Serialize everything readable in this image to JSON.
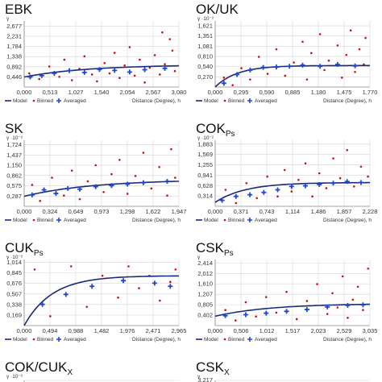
{
  "colors": {
    "model": "#1c2a7a",
    "binned": "#cc1111",
    "averaged": "#1f47d6",
    "grid": "#d6d6d6",
    "axis": "#888888"
  },
  "legend": {
    "model": "Model",
    "binned": "Binned",
    "averaged": "Averaged"
  },
  "chart_data": [
    {
      "type": "scatter",
      "title": "EBK",
      "title_sub": "",
      "xlabel": "Distance (Degree), h",
      "ylabel": "γ",
      "y_mult": "",
      "x_ticks": [
        "0,000",
        "0,513",
        "1,027",
        "1,540",
        "2,054",
        "2,567",
        "3,080"
      ],
      "y_ticks": [
        "0,446",
        "0,892",
        "1,338",
        "1,784",
        "2,231",
        "2,677"
      ],
      "xlim": [
        0,
        3.08
      ],
      "ylim": [
        0,
        2.9
      ],
      "model": {
        "nugget": 0.44,
        "sill": 0.98,
        "range": 3.8
      },
      "averaged": [
        [
          0.12,
          0.44
        ],
        [
          0.35,
          0.5
        ],
        [
          0.6,
          0.6
        ],
        [
          0.9,
          0.72
        ],
        [
          1.2,
          0.64
        ],
        [
          1.5,
          0.77
        ],
        [
          1.8,
          0.73
        ],
        [
          2.1,
          0.66
        ],
        [
          2.4,
          0.76
        ],
        [
          2.8,
          0.82
        ]
      ],
      "binned": [
        [
          0.1,
          0.6
        ],
        [
          0.3,
          0.35
        ],
        [
          0.5,
          0.9
        ],
        [
          0.7,
          0.45
        ],
        [
          0.8,
          1.2
        ],
        [
          0.95,
          0.3
        ],
        [
          1.1,
          0.8
        ],
        [
          1.2,
          1.35
        ],
        [
          1.35,
          0.55
        ],
        [
          1.45,
          0.25
        ],
        [
          1.6,
          1.05
        ],
        [
          1.7,
          0.6
        ],
        [
          1.8,
          1.5
        ],
        [
          1.9,
          0.4
        ],
        [
          2.0,
          0.95
        ],
        [
          2.1,
          1.75
        ],
        [
          2.2,
          0.5
        ],
        [
          2.3,
          1.2
        ],
        [
          2.4,
          0.2
        ],
        [
          2.5,
          0.85
        ],
        [
          2.6,
          1.4
        ],
        [
          2.7,
          0.55
        ],
        [
          2.8,
          1.0
        ],
        [
          2.9,
          2.1
        ],
        [
          3.0,
          0.7
        ],
        [
          2.95,
          1.6
        ],
        [
          2.75,
          2.4
        ]
      ]
    },
    {
      "type": "scatter",
      "title": "OK/UK",
      "title_sub": "",
      "xlabel": "Distance (Degree), h",
      "ylabel": "γ",
      "y_mult": "·10⁻²",
      "x_ticks": [
        "0,000",
        "0,295",
        "0,590",
        "0,885",
        "1,180",
        "1,475",
        "1,770"
      ],
      "y_ticks": [
        "0,270",
        "0,540",
        "0,810",
        "1,081",
        "1,351",
        "1,621"
      ],
      "xlim": [
        0,
        1.77
      ],
      "ylim": [
        0,
        1.75
      ],
      "model": {
        "nugget": 0.0,
        "sill": 0.57,
        "range": 0.75
      },
      "averaged": [
        [
          0.1,
          0.1
        ],
        [
          0.25,
          0.33
        ],
        [
          0.4,
          0.45
        ],
        [
          0.55,
          0.52
        ],
        [
          0.7,
          0.53
        ],
        [
          0.85,
          0.55
        ],
        [
          1.0,
          0.58
        ],
        [
          1.2,
          0.55
        ],
        [
          1.4,
          0.6
        ],
        [
          1.6,
          0.56
        ]
      ],
      "binned": [
        [
          0.1,
          0.25
        ],
        [
          0.2,
          0.05
        ],
        [
          0.3,
          0.5
        ],
        [
          0.4,
          0.2
        ],
        [
          0.5,
          0.8
        ],
        [
          0.6,
          0.35
        ],
        [
          0.7,
          1.0
        ],
        [
          0.8,
          0.3
        ],
        [
          0.9,
          0.65
        ],
        [
          1.0,
          1.2
        ],
        [
          1.05,
          0.2
        ],
        [
          1.1,
          0.9
        ],
        [
          1.2,
          1.4
        ],
        [
          1.25,
          0.45
        ],
        [
          1.3,
          0.7
        ],
        [
          1.4,
          1.1
        ],
        [
          1.45,
          0.25
        ],
        [
          1.5,
          0.85
        ],
        [
          1.55,
          1.5
        ],
        [
          1.6,
          0.4
        ],
        [
          1.65,
          1.0
        ],
        [
          1.7,
          0.6
        ],
        [
          1.72,
          1.3
        ]
      ]
    },
    {
      "type": "scatter",
      "title": "SK",
      "title_sub": "",
      "xlabel": "Distance (Degree), h",
      "ylabel": "γ",
      "y_mult": "·10⁻²",
      "x_ticks": [
        "0,000",
        "0,324",
        "0,649",
        "0,973",
        "1,298",
        "1,622",
        "1,947"
      ],
      "y_ticks": [
        "0,287",
        "0,575",
        "0,862",
        "1,150",
        "1,437",
        "1,724"
      ],
      "xlim": [
        0,
        1.947
      ],
      "ylim": [
        0,
        1.85
      ],
      "model": {
        "nugget": 0.28,
        "sill": 0.75,
        "range": 2.6
      },
      "averaged": [
        [
          0.1,
          0.32
        ],
        [
          0.25,
          0.46
        ],
        [
          0.4,
          0.36
        ],
        [
          0.55,
          0.5
        ],
        [
          0.7,
          0.48
        ],
        [
          0.9,
          0.55
        ],
        [
          1.1,
          0.58
        ],
        [
          1.3,
          0.62
        ],
        [
          1.5,
          0.66
        ],
        [
          1.8,
          0.7
        ]
      ],
      "binned": [
        [
          0.1,
          0.6
        ],
        [
          0.2,
          0.15
        ],
        [
          0.35,
          0.8
        ],
        [
          0.5,
          0.3
        ],
        [
          0.6,
          1.0
        ],
        [
          0.7,
          0.2
        ],
        [
          0.8,
          0.7
        ],
        [
          0.9,
          1.15
        ],
        [
          1.0,
          0.4
        ],
        [
          1.1,
          0.9
        ],
        [
          1.2,
          1.3
        ],
        [
          1.3,
          0.35
        ],
        [
          1.4,
          0.85
        ],
        [
          1.5,
          1.5
        ],
        [
          1.6,
          0.5
        ],
        [
          1.7,
          1.1
        ],
        [
          1.8,
          0.3
        ],
        [
          1.85,
          1.6
        ],
        [
          1.9,
          0.8
        ]
      ]
    },
    {
      "type": "scatter",
      "title": "COK",
      "title_sub": "Ps",
      "xlabel": "Distance (Degree), h",
      "ylabel": "γ",
      "y_mult": "·10⁻²",
      "x_ticks": [
        "0,000",
        "0,371",
        "0,743",
        "1,114",
        "1,486",
        "1,857",
        "2,228"
      ],
      "y_ticks": [
        "0,314",
        "0,628",
        "0,941",
        "1,255",
        "1,569",
        "1,883"
      ],
      "xlim": [
        0,
        2.228
      ],
      "ylim": [
        0,
        2.0
      ],
      "model": {
        "nugget": 0.12,
        "sill": 0.72,
        "range": 1.3
      },
      "averaged": [
        [
          0.1,
          0.18
        ],
        [
          0.3,
          0.3
        ],
        [
          0.5,
          0.35
        ],
        [
          0.7,
          0.42
        ],
        [
          0.9,
          0.5
        ],
        [
          1.1,
          0.6
        ],
        [
          1.3,
          0.62
        ],
        [
          1.5,
          0.66
        ],
        [
          1.7,
          0.7
        ],
        [
          1.9,
          0.75
        ],
        [
          2.1,
          0.72
        ]
      ],
      "binned": [
        [
          0.15,
          0.5
        ],
        [
          0.3,
          0.1
        ],
        [
          0.45,
          0.7
        ],
        [
          0.6,
          0.25
        ],
        [
          0.75,
          0.9
        ],
        [
          0.9,
          0.3
        ],
        [
          1.0,
          1.1
        ],
        [
          1.1,
          0.45
        ],
        [
          1.2,
          0.8
        ],
        [
          1.3,
          1.3
        ],
        [
          1.4,
          0.3
        ],
        [
          1.5,
          1.0
        ],
        [
          1.6,
          0.55
        ],
        [
          1.7,
          1.45
        ],
        [
          1.8,
          0.85
        ],
        [
          1.9,
          1.7
        ],
        [
          2.0,
          0.6
        ],
        [
          2.1,
          1.2
        ],
        [
          2.2,
          0.9
        ]
      ]
    },
    {
      "type": "scatter",
      "title": "CUK",
      "title_sub": "Ps",
      "xlabel": "Distance (Degree), h",
      "ylabel": "γ",
      "y_mult": "·10⁻²",
      "x_ticks": [
        "0,000",
        "0,494",
        "0,988",
        "1,482",
        "1,976",
        "2,471",
        "2,965"
      ],
      "y_ticks": [
        "0,169",
        "0,338",
        "0,507",
        "0,676",
        "0,845",
        "1,014"
      ],
      "xlim": [
        0,
        2.965
      ],
      "ylim": [
        0,
        1.06
      ],
      "model": {
        "nugget": 0.0,
        "sill": 0.8,
        "range": 1.6
      },
      "averaged": [
        [
          0.35,
          0.34
        ],
        [
          0.8,
          0.5
        ],
        [
          1.3,
          0.63
        ],
        [
          1.9,
          0.72
        ],
        [
          2.5,
          0.68
        ],
        [
          2.8,
          0.63
        ]
      ],
      "binned": [
        [
          0.2,
          0.9
        ],
        [
          0.5,
          0.15
        ],
        [
          0.9,
          0.95
        ],
        [
          1.2,
          0.3
        ],
        [
          1.5,
          0.8
        ],
        [
          1.8,
          0.45
        ],
        [
          2.0,
          0.95
        ],
        [
          2.2,
          0.6
        ],
        [
          2.4,
          0.8
        ],
        [
          2.6,
          0.4
        ],
        [
          2.8,
          0.7
        ],
        [
          2.9,
          0.9
        ]
      ]
    },
    {
      "type": "scatter",
      "title": "CSK",
      "title_sub": "Ps",
      "xlabel": "Distance (Degree), h",
      "ylabel": "γ",
      "y_mult": "",
      "x_ticks": [
        "0,000",
        "0,506",
        "1,012",
        "1,517",
        "2,023",
        "2,529",
        "3,035"
      ],
      "y_ticks": [
        "0,402",
        "0,805",
        "1,207",
        "1,610",
        "2,012",
        "2,414"
      ],
      "xlim": [
        0,
        3.035
      ],
      "ylim": [
        0,
        2.55
      ],
      "model": {
        "nugget": 0.36,
        "sill": 0.85,
        "range": 3.2
      },
      "averaged": [
        [
          0.2,
          0.38
        ],
        [
          0.6,
          0.42
        ],
        [
          1.0,
          0.48
        ],
        [
          1.4,
          0.55
        ],
        [
          1.8,
          0.62
        ],
        [
          2.2,
          0.72
        ],
        [
          2.6,
          0.78
        ],
        [
          2.9,
          0.8
        ]
      ],
      "binned": [
        [
          0.2,
          0.6
        ],
        [
          0.4,
          0.2
        ],
        [
          0.6,
          0.9
        ],
        [
          0.8,
          0.35
        ],
        [
          1.0,
          1.1
        ],
        [
          1.2,
          0.5
        ],
        [
          1.4,
          1.3
        ],
        [
          1.6,
          0.25
        ],
        [
          1.8,
          0.95
        ],
        [
          2.0,
          1.6
        ],
        [
          2.2,
          0.45
        ],
        [
          2.3,
          1.25
        ],
        [
          2.4,
          0.7
        ],
        [
          2.5,
          1.9
        ],
        [
          2.6,
          0.3
        ],
        [
          2.7,
          1.0
        ],
        [
          2.8,
          1.5
        ],
        [
          2.9,
          0.6
        ],
        [
          3.0,
          2.2
        ]
      ]
    },
    {
      "type": "scatter",
      "title": "COK/CUK",
      "title_sub": "X",
      "xlabel": "",
      "ylabel": "γ",
      "y_mult": "·10⁻²",
      "x_ticks": [],
      "y_ticks": [],
      "top_tick": "",
      "partial": true
    },
    {
      "type": "scatter",
      "title": "CSK",
      "title_sub": "X",
      "xlabel": "",
      "ylabel": "γ",
      "y_mult": "",
      "x_ticks": [],
      "y_ticks": [],
      "top_tick": "3,217",
      "partial": true
    }
  ]
}
